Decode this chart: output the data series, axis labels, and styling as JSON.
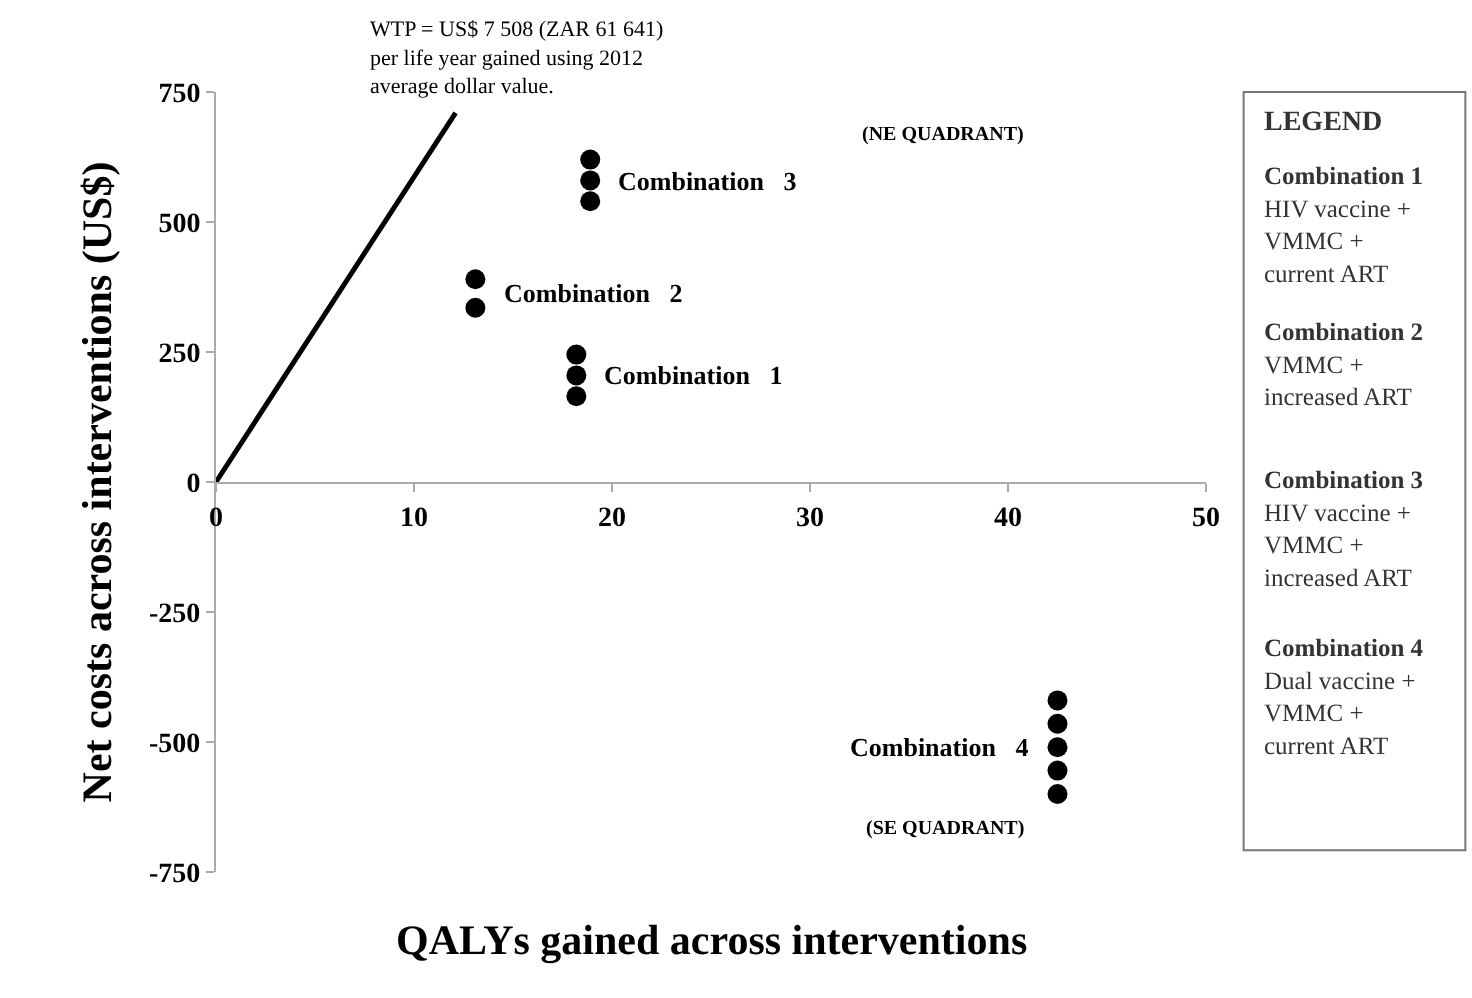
{
  "chart_data": {
    "type": "scatter",
    "xlabel": "QALYs gained across interventions",
    "ylabel": "Net costs across interventions (US$)",
    "xlim": [
      0,
      50
    ],
    "xticks": [
      0,
      10,
      20,
      30,
      40,
      50
    ],
    "ylim": [
      -750,
      750
    ],
    "yticks": [
      -750,
      -500,
      -250,
      0,
      250,
      500,
      750
    ],
    "grid": false,
    "marker": "circle",
    "series": [
      {
        "name": "Combination 1",
        "color": "#000000",
        "x": [
          18.2,
          18.2,
          18.2
        ],
        "values": [
          165,
          205,
          245
        ]
      },
      {
        "name": "Combination 2",
        "color": "#000000",
        "x": [
          13.1,
          13.1
        ],
        "values": [
          335,
          390
        ]
      },
      {
        "name": "Combination 3",
        "color": "#000000",
        "x": [
          18.9,
          18.9,
          18.9
        ],
        "values": [
          540,
          580,
          620
        ]
      },
      {
        "name": "Combination 4",
        "color": "#000000",
        "x": [
          42.5,
          42.5,
          42.5,
          42.5,
          42.5
        ],
        "values": [
          -420,
          -465,
          -510,
          -555,
          -600
        ]
      },
      {
        "type": "line",
        "color": "#000000",
        "marker": "none",
        "line_style": "solid",
        "x": [
          0,
          12.1
        ],
        "values": [
          0,
          710
        ]
      }
    ],
    "annotations": [
      {
        "text": "WTP = US$ 7 508 (ZAR 61 641)\nper life year gained using 2012\naverage dollar value.",
        "x": 12.1,
        "y": 710
      },
      "(NE QUADRANT)",
      "(SE QUADRANT)",
      "LEGEND",
      "Combination 1\nHIV vaccine +\nVMMC +\ncurrent ART",
      "Combination 2\nVMMC +\nincreased ART",
      "Combination 3\nHIV vaccine +\nVMMC +\nincreased ART",
      "Combination 4\nDual vaccine +\nVMMC +\ncurrent ART"
    ]
  }
}
